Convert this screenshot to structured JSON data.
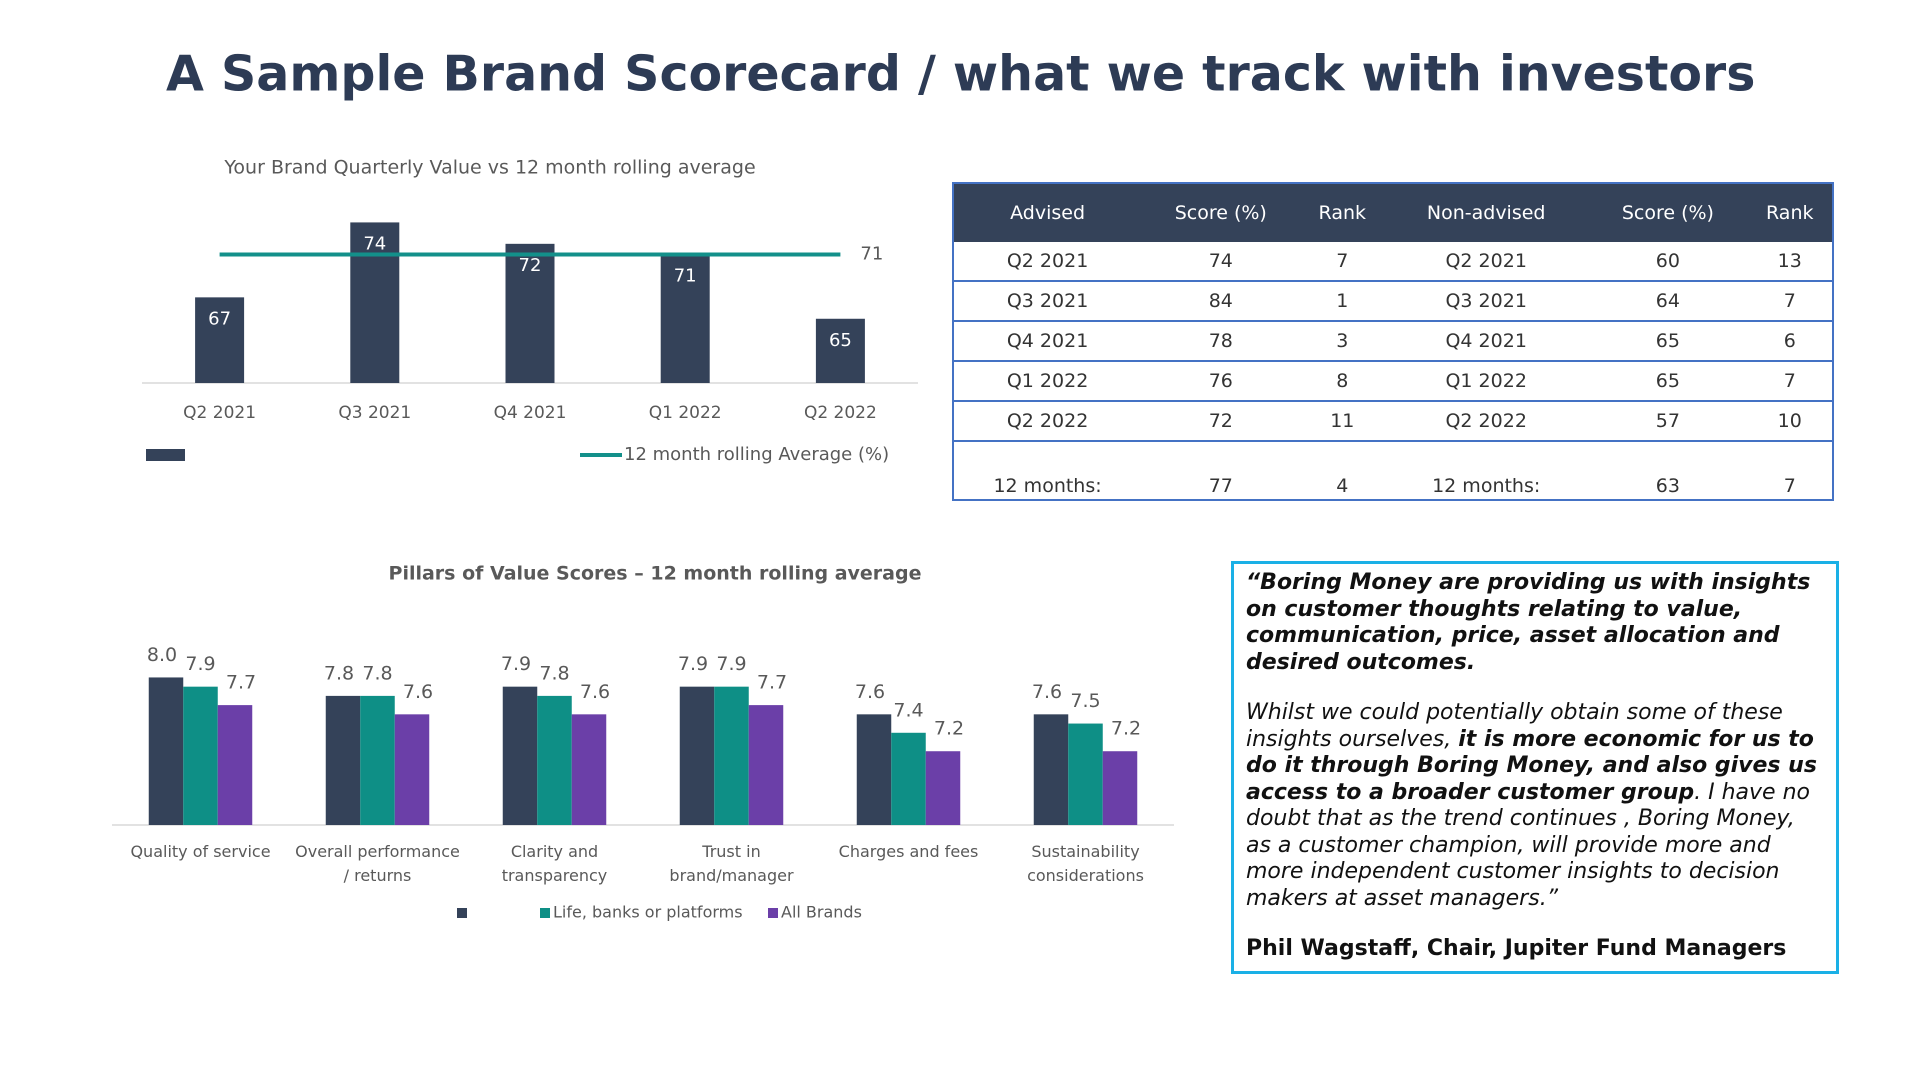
{
  "title": "A Sample Brand Scorecard / what we track with investors",
  "chart_data": [
    {
      "type": "bar",
      "title": "Your Brand Quarterly Value vs 12 month rolling average",
      "categories": [
        "Q2 2021",
        "Q3 2021",
        "Q4 2021",
        "Q1 2022",
        "Q2 2022"
      ],
      "series": [
        {
          "color": "#344259",
          "values": [
            67,
            74,
            72,
            71,
            65
          ]
        },
        {
          "name": "12 month rolling Average (%)",
          "type": "line",
          "color": "#13908a",
          "labels": "last",
          "values": [
            71,
            71,
            71,
            71,
            71
          ]
        }
      ],
      "ylim": [
        59,
        76
      ]
    },
    {
      "type": "grouped_bar",
      "title": "Pillars of Value Scores – 12 month rolling average",
      "categories": [
        "Quality of service",
        "Overall performance / returns",
        "Clarity and transparency",
        "Trust in brand/manager",
        "Charges and fees",
        "Sustainability considerations"
      ],
      "series": [
        {
          "color": "#344259",
          "values": [
            8,
            7.8,
            7.9,
            7.9,
            7.6,
            7.6
          ],
          "value_labels": [
            "8.0",
            "7.8",
            "7.9",
            "7.9",
            "7.6",
            "7.6"
          ]
        },
        {
          "name": "Life, banks or platforms",
          "color": "#0e8f86",
          "values": [
            7.9,
            7.8,
            7.8,
            7.9,
            7.4,
            7.5
          ]
        },
        {
          "name": "All Brands",
          "color": "#6b3fa8",
          "values": [
            7.7,
            7.6,
            7.6,
            7.7,
            7.2,
            7.2
          ]
        }
      ],
      "ylim": [
        6.4,
        8.2
      ]
    }
  ],
  "table": {
    "header": [
      "Advised",
      "Score (%)",
      "Rank",
      "Non-advised",
      "Score (%)",
      "Rank"
    ],
    "rows": [
      [
        "Q2 2021",
        74,
        7,
        "Q2 2021",
        60,
        13
      ],
      [
        "Q3 2021",
        84,
        1,
        "Q3 2021",
        64,
        7
      ],
      [
        "Q4 2021",
        78,
        3,
        "Q4 2021",
        65,
        6
      ],
      [
        "Q1 2022",
        76,
        8,
        "Q1 2022",
        65,
        7
      ],
      [
        "Q2 2022",
        72,
        11,
        "Q2 2022",
        57,
        10
      ],
      [
        "12 months:",
        77,
        4,
        "12 months:",
        63,
        7
      ]
    ]
  },
  "quote": {
    "lead": "“Boring Money are providing us with insights on customer thoughts relating to value, communication, price, asset allocation and desired outcomes.",
    "body": [
      {
        "text": "Whilst we could potentially obtain some of these insights ourselves, ",
        "bold": false
      },
      {
        "text": "it is more economic for us to do it through Boring Money, and also gives us access to a broader customer group",
        "bold": true
      },
      {
        "text": ". I have no doubt that as the trend continues , Boring Money, as a customer champion, will provide more and more independent customer insights to decision makers at asset managers.”",
        "bold": false
      }
    ],
    "attribution": "Phil Wagstaff, Chair, Jupiter Fund Managers"
  }
}
